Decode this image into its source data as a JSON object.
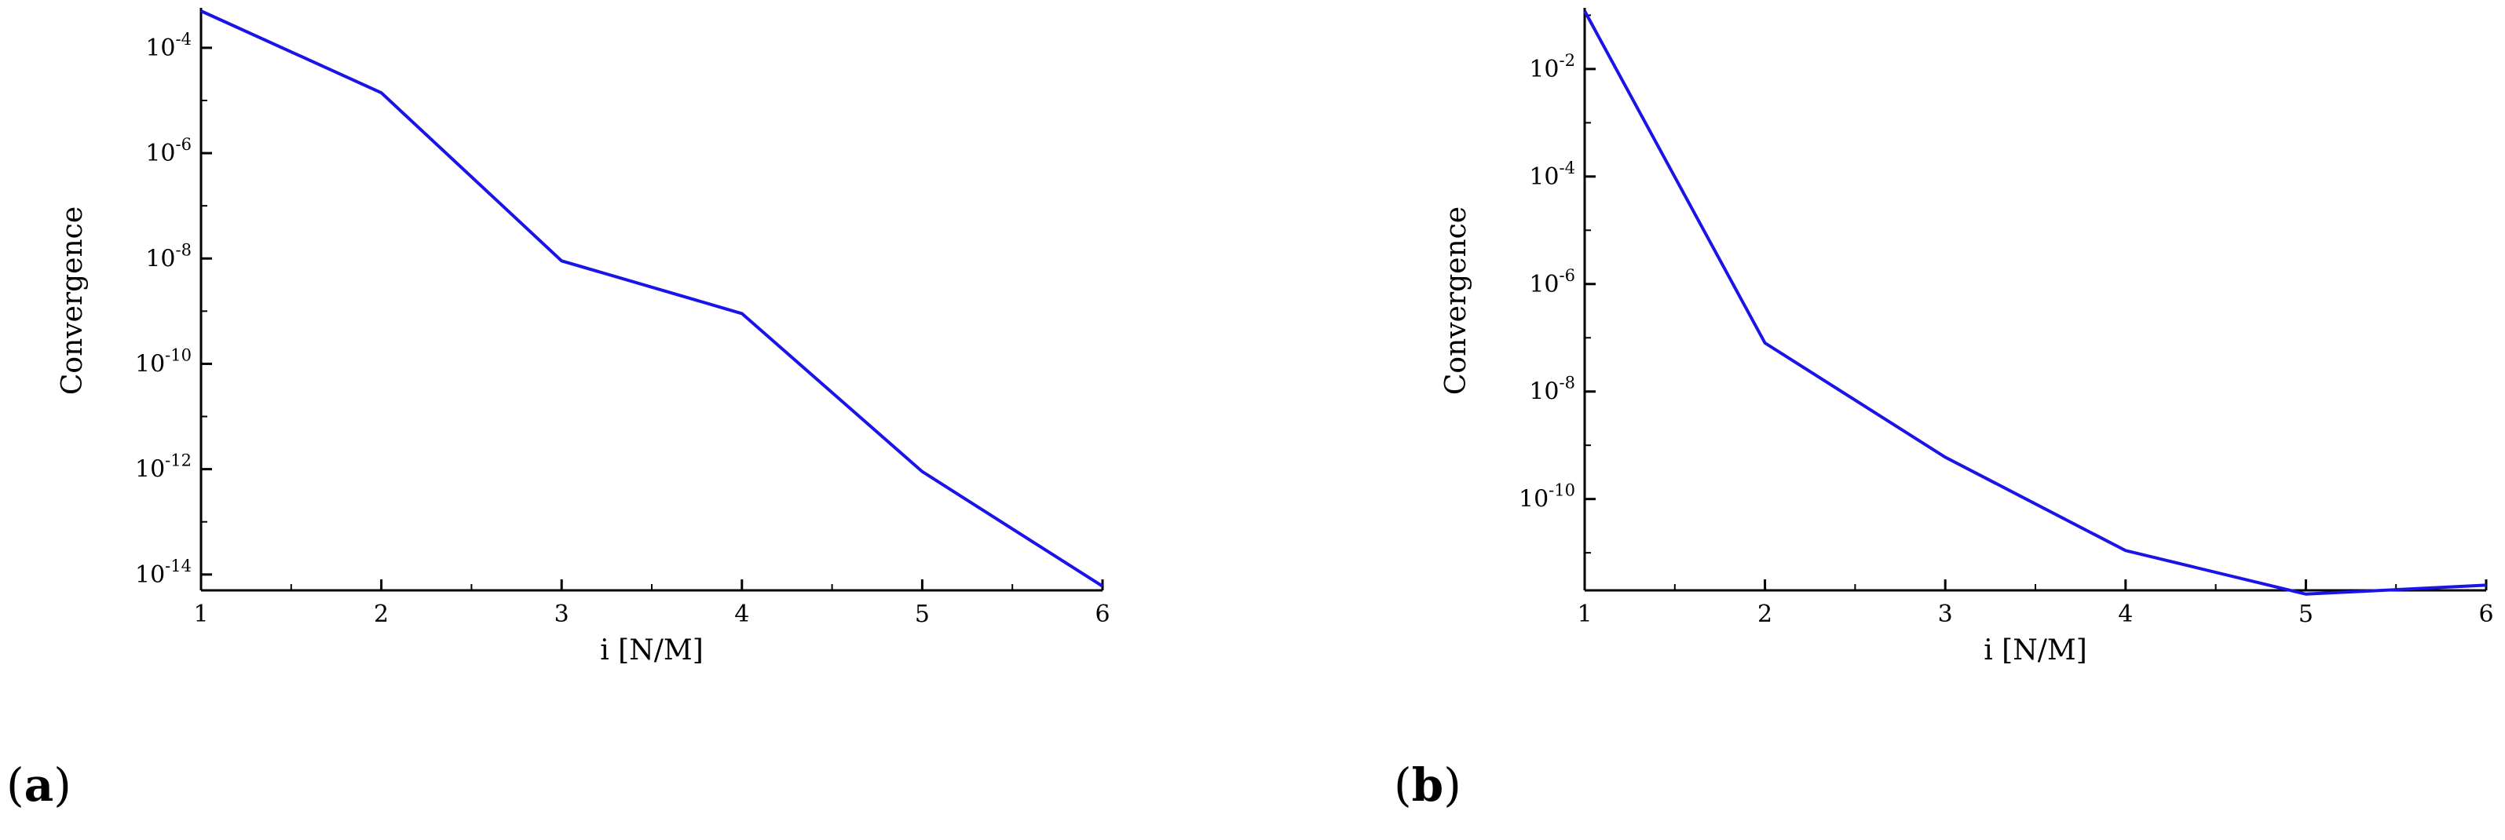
{
  "panels": [
    {
      "label": "(a)",
      "bold_letter": "a"
    },
    {
      "label": "(b)",
      "bold_letter": "b"
    }
  ],
  "chart_data": [
    {
      "type": "line",
      "xlabel": "i [N/M]",
      "ylabel": "Convergence",
      "yscale": "log",
      "xlim": [
        1,
        6
      ],
      "ylim": [
        5e-15,
        0.0005
      ],
      "x_ticks": [
        1,
        2,
        3,
        4,
        5,
        6
      ],
      "y_tick_exponents": [
        -4,
        -6,
        -8,
        -10,
        -12,
        -14
      ],
      "y_tick_labels": [
        "10-4",
        "10-6",
        "10-8",
        "10-10",
        "10-12",
        "10-14"
      ],
      "grid": false,
      "series": [
        {
          "color": "#1a14e8",
          "x": [
            1,
            2,
            3,
            4,
            5,
            6
          ],
          "y": [
            0.0005,
            1.4e-05,
            9e-09,
            9e-10,
            9e-13,
            6e-15
          ]
        }
      ]
    },
    {
      "type": "line",
      "xlabel": "i [N/M]",
      "ylabel": "Convergence",
      "yscale": "log",
      "xlim": [
        1,
        6
      ],
      "ylim": [
        2e-12,
        0.12
      ],
      "x_ticks": [
        1,
        2,
        3,
        4,
        5,
        6
      ],
      "y_tick_exponents": [
        -2,
        -4,
        -6,
        -8,
        -10
      ],
      "y_tick_labels": [
        "10-2",
        "10-4",
        "10-6",
        "10-8",
        "10-10"
      ],
      "grid": false,
      "series": [
        {
          "color": "#1a14e8",
          "x": [
            1,
            2,
            3,
            4,
            5,
            6
          ],
          "y": [
            0.12,
            8e-08,
            6e-10,
            1.1e-11,
            1.7e-12,
            2.5e-12
          ]
        }
      ]
    }
  ]
}
